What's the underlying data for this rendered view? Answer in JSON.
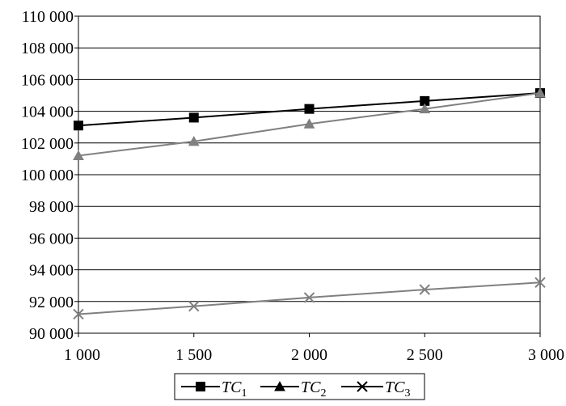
{
  "chart_data": {
    "type": "line",
    "x": [
      1000,
      1500,
      2000,
      2500,
      3000
    ],
    "x_tick_labels": [
      "1 000",
      "1 500",
      "2 000",
      "2 500",
      "3 000"
    ],
    "xlim": [
      1000,
      3000
    ],
    "ylim": [
      90000,
      110000
    ],
    "y_ticks": [
      90000,
      92000,
      94000,
      96000,
      98000,
      100000,
      102000,
      104000,
      106000,
      108000,
      110000
    ],
    "y_tick_labels": [
      "90 000",
      "92 000",
      "94 000",
      "96 000",
      "98 000",
      "100 000",
      "102 000",
      "104 000",
      "106 000",
      "108 000",
      "110 000"
    ],
    "grid": "horizontal",
    "legend_position": "bottom",
    "series": [
      {
        "name": "TC1",
        "label_main": "TC",
        "label_sub": "1",
        "marker": "square",
        "color": "#000000",
        "values": [
          103100,
          103600,
          104150,
          104650,
          105150
        ]
      },
      {
        "name": "TC2",
        "label_main": "TC",
        "label_sub": "2",
        "marker": "triangle",
        "color": "#808080",
        "values": [
          101200,
          102100,
          103200,
          104150,
          105150
        ]
      },
      {
        "name": "TC3",
        "label_main": "TC",
        "label_sub": "3",
        "marker": "x",
        "color": "#808080",
        "values": [
          91200,
          91700,
          92250,
          92750,
          93200
        ]
      }
    ]
  }
}
